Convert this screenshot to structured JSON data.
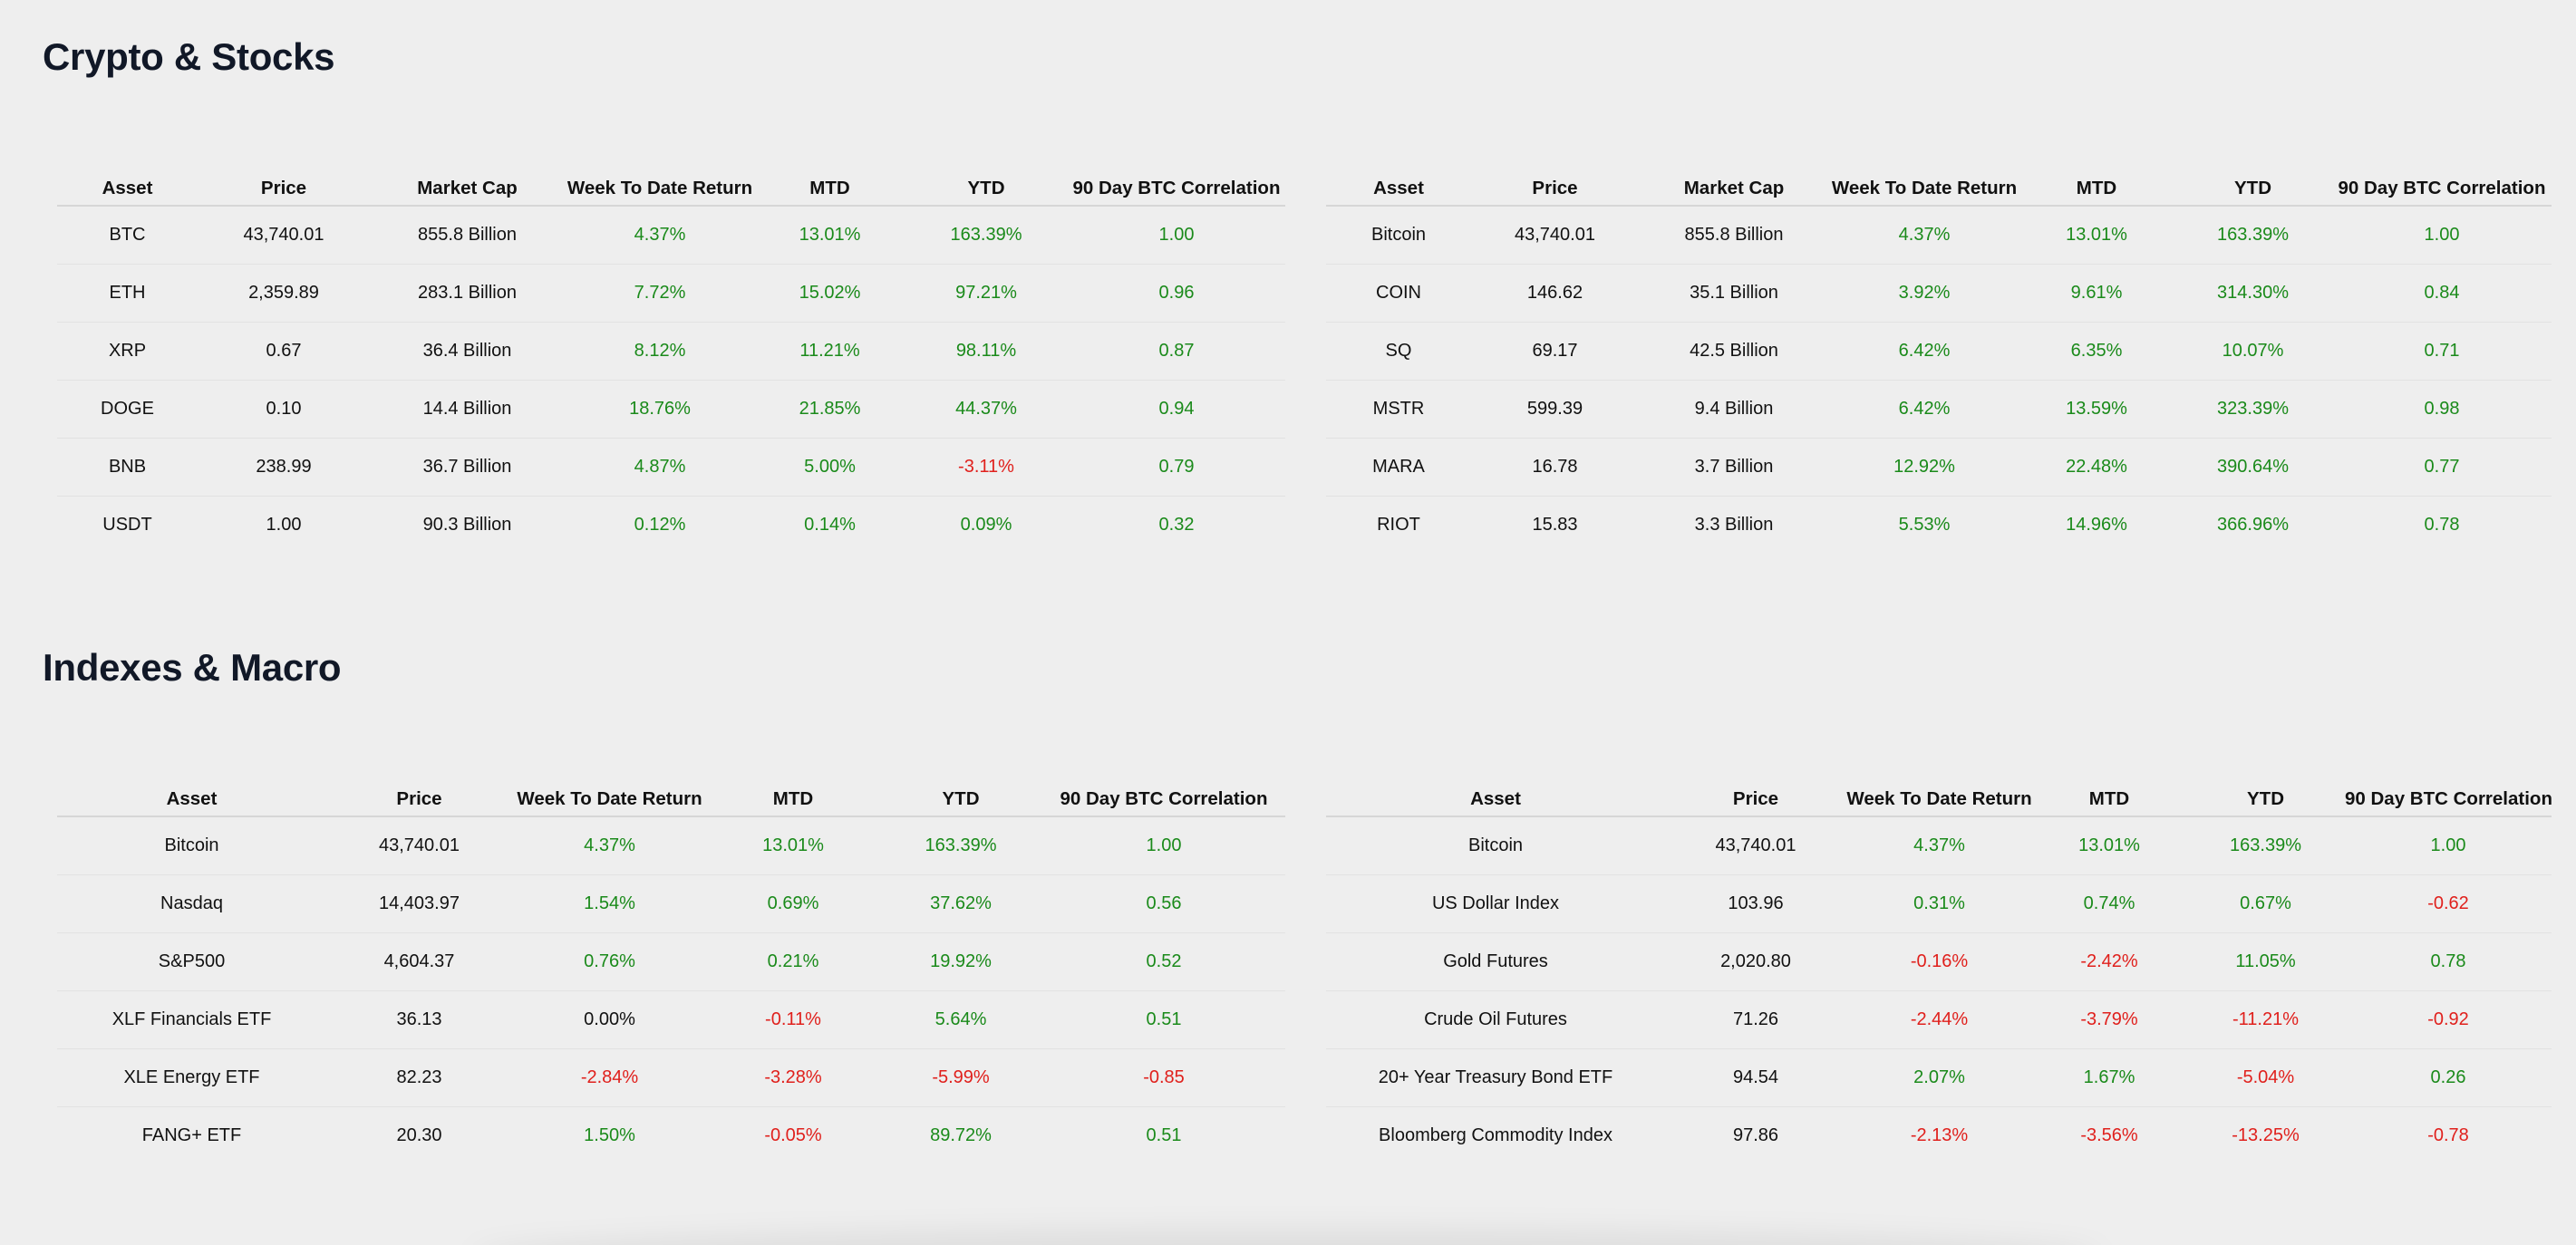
{
  "sections": {
    "crypto_title": "Crypto & Stocks",
    "macro_title": "Indexes & Macro"
  },
  "colors": {
    "positive": "#1a8a1a",
    "negative": "#e0201c",
    "neutral": "#111111"
  },
  "tables": [
    {
      "id": "crypto",
      "headers": [
        "Asset",
        "Price",
        "Market Cap",
        "Week To Date Return",
        "MTD",
        "YTD",
        "90 Day BTC Correlation"
      ],
      "rows": [
        [
          "BTC",
          "43,740.01",
          "855.8 Billion",
          "4.37%",
          "13.01%",
          "163.39%",
          "1.00"
        ],
        [
          "ETH",
          "2,359.89",
          "283.1 Billion",
          "7.72%",
          "15.02%",
          "97.21%",
          "0.96"
        ],
        [
          "XRP",
          "0.67",
          "36.4 Billion",
          "8.12%",
          "11.21%",
          "98.11%",
          "0.87"
        ],
        [
          "DOGE",
          "0.10",
          "14.4 Billion",
          "18.76%",
          "21.85%",
          "44.37%",
          "0.94"
        ],
        [
          "BNB",
          "238.99",
          "36.7 Billion",
          "4.87%",
          "5.00%",
          "-3.11%",
          "0.79"
        ],
        [
          "USDT",
          "1.00",
          "90.3 Billion",
          "0.12%",
          "0.14%",
          "0.09%",
          "0.32"
        ]
      ]
    },
    {
      "id": "stocks",
      "headers": [
        "Asset",
        "Price",
        "Market Cap",
        "Week To Date Return",
        "MTD",
        "YTD",
        "90 Day BTC Correlation"
      ],
      "rows": [
        [
          "Bitcoin",
          "43,740.01",
          "855.8 Billion",
          "4.37%",
          "13.01%",
          "163.39%",
          "1.00"
        ],
        [
          "COIN",
          "146.62",
          "35.1 Billion",
          "3.92%",
          "9.61%",
          "314.30%",
          "0.84"
        ],
        [
          "SQ",
          "69.17",
          "42.5 Billion",
          "6.42%",
          "6.35%",
          "10.07%",
          "0.71"
        ],
        [
          "MSTR",
          "599.39",
          "9.4 Billion",
          "6.42%",
          "13.59%",
          "323.39%",
          "0.98"
        ],
        [
          "MARA",
          "16.78",
          "3.7 Billion",
          "12.92%",
          "22.48%",
          "390.64%",
          "0.77"
        ],
        [
          "RIOT",
          "15.83",
          "3.3 Billion",
          "5.53%",
          "14.96%",
          "366.96%",
          "0.78"
        ]
      ]
    },
    {
      "id": "indexes",
      "headers": [
        "Asset",
        "Price",
        "Week To Date Return",
        "MTD",
        "YTD",
        "90 Day BTC Correlation"
      ],
      "rows": [
        [
          "Bitcoin",
          "43,740.01",
          "4.37%",
          "13.01%",
          "163.39%",
          "1.00"
        ],
        [
          "Nasdaq",
          "14,403.97",
          "1.54%",
          "0.69%",
          "37.62%",
          "0.56"
        ],
        [
          "S&P500",
          "4,604.37",
          "0.76%",
          "0.21%",
          "19.92%",
          "0.52"
        ],
        [
          "XLF Financials ETF",
          "36.13",
          "0.00%",
          "-0.11%",
          "5.64%",
          "0.51"
        ],
        [
          "XLE Energy ETF",
          "82.23",
          "-2.84%",
          "-3.28%",
          "-5.99%",
          "-0.85"
        ],
        [
          "FANG+ ETF",
          "20.30",
          "1.50%",
          "-0.05%",
          "89.72%",
          "0.51"
        ]
      ]
    },
    {
      "id": "macro",
      "headers": [
        "Asset",
        "Price",
        "Week To Date Return",
        "MTD",
        "YTD",
        "90 Day BTC Correlation"
      ],
      "rows": [
        [
          "Bitcoin",
          "43,740.01",
          "4.37%",
          "13.01%",
          "163.39%",
          "1.00"
        ],
        [
          "US Dollar Index",
          "103.96",
          "0.31%",
          "0.74%",
          "0.67%",
          "-0.62"
        ],
        [
          "Gold Futures",
          "2,020.80",
          "-0.16%",
          "-2.42%",
          "11.05%",
          "0.78"
        ],
        [
          "Crude Oil Futures",
          "71.26",
          "-2.44%",
          "-3.79%",
          "-11.21%",
          "-0.92"
        ],
        [
          "20+ Year Treasury Bond ETF",
          "94.54",
          "2.07%",
          "1.67%",
          "-5.04%",
          "0.26"
        ],
        [
          "Bloomberg Commodity Index",
          "97.86",
          "-2.13%",
          "-3.56%",
          "-13.25%",
          "-0.78"
        ]
      ]
    }
  ]
}
